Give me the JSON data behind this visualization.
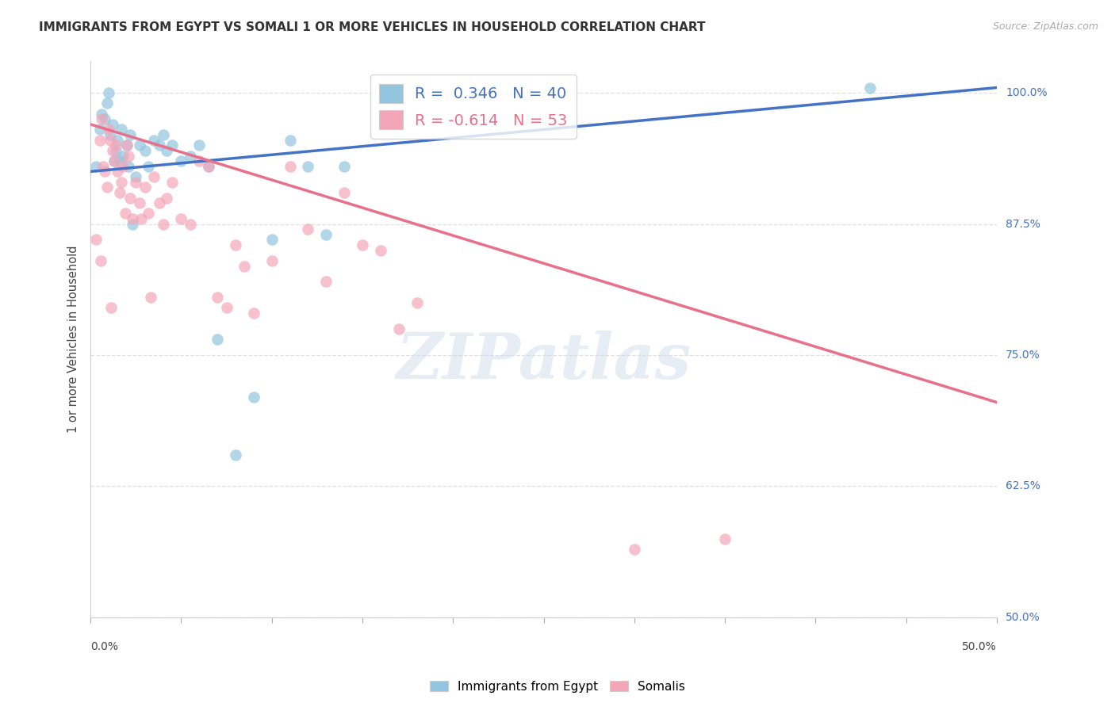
{
  "title": "IMMIGRANTS FROM EGYPT VS SOMALI 1 OR MORE VEHICLES IN HOUSEHOLD CORRELATION CHART",
  "source": "Source: ZipAtlas.com",
  "ylabel": "1 or more Vehicles in Household",
  "yticks": [
    50.0,
    62.5,
    75.0,
    87.5,
    100.0
  ],
  "ytick_labels": [
    "50.0%",
    "62.5%",
    "75.0%",
    "87.5%",
    "100.0%"
  ],
  "xrange": [
    0.0,
    50.0
  ],
  "yrange": [
    50.0,
    103.0
  ],
  "legend_blue_label": "R =  0.346   N = 40",
  "legend_pink_label": "R = -0.614   N = 53",
  "blue_color": "#92c5de",
  "pink_color": "#f4a6b8",
  "blue_line_color": "#4472c4",
  "pink_line_color": "#e8708a",
  "blue_line_x0": 0.0,
  "blue_line_x1": 50.0,
  "blue_line_y0": 92.5,
  "blue_line_y1": 100.5,
  "pink_line_x0": 0.0,
  "pink_line_x1": 50.0,
  "pink_line_y0": 97.0,
  "pink_line_y1": 70.5,
  "watermark": "ZIPatlas",
  "background_color": "#ffffff",
  "grid_color": "#e0e0e0",
  "blue_scatter_x": [
    0.3,
    0.5,
    0.6,
    0.8,
    0.9,
    1.0,
    1.1,
    1.2,
    1.4,
    1.5,
    1.6,
    1.7,
    1.8,
    2.0,
    2.1,
    2.2,
    2.5,
    2.7,
    3.0,
    3.2,
    3.5,
    4.0,
    4.5,
    5.0,
    5.5,
    6.0,
    6.5,
    7.0,
    8.0,
    9.0,
    10.0,
    11.0,
    12.0,
    13.0,
    14.0,
    3.8,
    4.2,
    1.3,
    2.3,
    43.0
  ],
  "blue_scatter_y": [
    93.0,
    96.5,
    98.0,
    97.5,
    99.0,
    100.0,
    96.0,
    97.0,
    94.5,
    95.5,
    93.5,
    96.5,
    94.0,
    95.0,
    93.0,
    96.0,
    92.0,
    95.0,
    94.5,
    93.0,
    95.5,
    96.0,
    95.0,
    93.5,
    94.0,
    95.0,
    93.0,
    76.5,
    65.5,
    71.0,
    86.0,
    95.5,
    93.0,
    86.5,
    93.0,
    95.0,
    94.5,
    93.5,
    87.5,
    100.5
  ],
  "pink_scatter_x": [
    0.3,
    0.5,
    0.6,
    0.7,
    0.8,
    0.9,
    1.0,
    1.1,
    1.2,
    1.3,
    1.4,
    1.5,
    1.6,
    1.7,
    1.8,
    1.9,
    2.0,
    2.1,
    2.2,
    2.3,
    2.5,
    2.7,
    3.0,
    3.2,
    3.5,
    3.8,
    4.0,
    4.2,
    4.5,
    5.0,
    5.5,
    6.0,
    6.5,
    7.0,
    7.5,
    8.0,
    9.0,
    10.0,
    11.0,
    12.0,
    13.0,
    14.0,
    15.0,
    16.0,
    17.0,
    18.0,
    3.3,
    2.8,
    1.15,
    0.55,
    8.5,
    30.0,
    35.0
  ],
  "pink_scatter_y": [
    86.0,
    95.5,
    97.5,
    93.0,
    92.5,
    91.0,
    96.5,
    95.5,
    94.5,
    93.5,
    95.0,
    92.5,
    90.5,
    91.5,
    93.0,
    88.5,
    95.0,
    94.0,
    90.0,
    88.0,
    91.5,
    89.5,
    91.0,
    88.5,
    92.0,
    89.5,
    87.5,
    90.0,
    91.5,
    88.0,
    87.5,
    93.5,
    93.0,
    80.5,
    79.5,
    85.5,
    79.0,
    84.0,
    93.0,
    87.0,
    82.0,
    90.5,
    85.5,
    85.0,
    77.5,
    80.0,
    80.5,
    88.0,
    79.5,
    84.0,
    83.5,
    56.5,
    57.5
  ]
}
